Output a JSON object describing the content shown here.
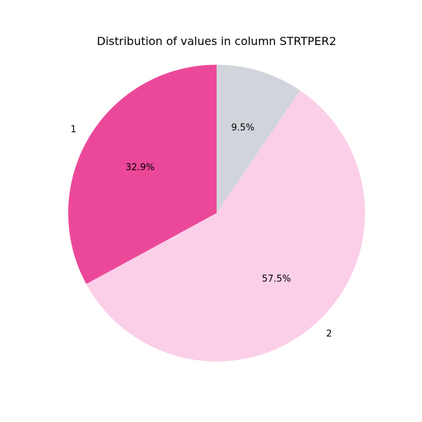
{
  "chart_data": {
    "type": "pie",
    "title": "Distribution of values in column STRTPER2",
    "slices": [
      {
        "label": "1",
        "value": 32.9,
        "pct_label": "32.9%",
        "color": "#ec4899"
      },
      {
        "label": "2",
        "value": 57.5,
        "pct_label": "57.5%",
        "color": "#fbcfe8"
      },
      {
        "label": "",
        "value": 9.5,
        "pct_label": "9.5%",
        "color": "#d1d5db"
      }
    ],
    "start_angle": "top",
    "direction": "counterclockwise"
  }
}
